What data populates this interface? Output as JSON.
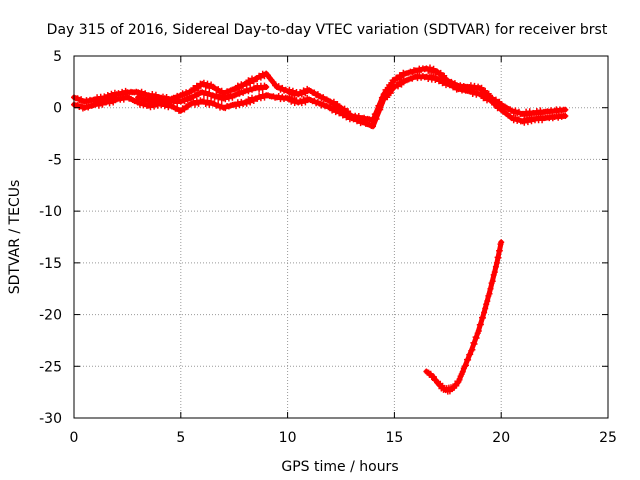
{
  "chart_data": {
    "type": "scatter",
    "title": "Day 315 of 2016, Sidereal Day-to-day VTEC variation (SDTVAR) for receiver brst",
    "xlabel": "GPS time / hours",
    "ylabel": "SDTVAR / TECUs",
    "xlim": [
      0,
      25
    ],
    "ylim": [
      -30,
      5
    ],
    "x_ticks": [
      0,
      5,
      10,
      15,
      20,
      25
    ],
    "x_tick_labels": [
      "0",
      "5",
      "10",
      "15",
      "20",
      "25"
    ],
    "y_ticks": [
      5,
      0,
      -5,
      -10,
      -15,
      -20,
      -25,
      -30
    ],
    "y_tick_labels": [
      "5",
      "0",
      "-5",
      "-10",
      "-15",
      "-20",
      "-25",
      "-30"
    ],
    "grid": true,
    "series_color": "#ff0000",
    "series": [
      {
        "name": "band-lower",
        "x": [
          0.0,
          0.5,
          1.0,
          1.5,
          2.0,
          2.5,
          3.0,
          3.5,
          4.0,
          4.5,
          5.0,
          5.5,
          6.0,
          6.5,
          7.0,
          7.5,
          8.0,
          8.5,
          9.0,
          9.5,
          10.0,
          10.5,
          11.0,
          11.5,
          12.0,
          12.5,
          13.0,
          13.5,
          14.0,
          14.5,
          15.0,
          15.5,
          16.0,
          16.5,
          17.0,
          17.5,
          18.0,
          18.5,
          19.0,
          19.5,
          20.0,
          20.5,
          21.0,
          21.5,
          22.0,
          22.5,
          23.0
        ],
        "y": [
          0.3,
          0.0,
          0.3,
          0.5,
          0.8,
          1.0,
          0.5,
          0.2,
          0.4,
          0.2,
          -0.3,
          0.4,
          0.6,
          0.4,
          0.0,
          0.3,
          0.5,
          0.9,
          1.2,
          1.0,
          0.9,
          0.5,
          0.8,
          0.4,
          0.0,
          -0.5,
          -1.0,
          -1.4,
          -1.8,
          0.8,
          2.0,
          2.6,
          3.0,
          3.0,
          2.8,
          2.3,
          1.8,
          1.6,
          1.3,
          0.7,
          -0.2,
          -1.0,
          -1.3,
          -1.1,
          -1.0,
          -0.9,
          -0.8
        ]
      },
      {
        "name": "band-upper",
        "x": [
          0.0,
          0.5,
          1.0,
          1.5,
          2.0,
          2.5,
          3.0,
          3.5,
          4.0,
          4.5,
          5.0,
          5.5,
          6.0,
          6.5,
          7.0,
          7.5,
          8.0,
          8.5,
          9.0,
          9.5,
          10.0,
          10.5,
          11.0,
          11.5,
          12.0,
          12.5,
          13.0,
          13.5,
          14.0,
          14.5,
          15.0,
          15.5,
          16.0,
          16.5,
          17.0,
          17.5,
          18.0,
          18.5,
          19.0,
          19.5,
          20.0,
          20.5,
          21.0,
          21.5,
          22.0,
          22.5,
          23.0
        ],
        "y": [
          1.0,
          0.6,
          0.8,
          1.0,
          1.3,
          1.5,
          1.5,
          1.2,
          1.0,
          0.8,
          1.2,
          1.6,
          2.3,
          2.0,
          1.4,
          1.8,
          2.3,
          2.8,
          3.3,
          2.0,
          1.6,
          1.3,
          1.7,
          1.1,
          0.6,
          0.0,
          -0.8,
          -1.0,
          -1.2,
          1.3,
          2.7,
          3.3,
          3.6,
          3.8,
          3.5,
          2.6,
          2.1,
          2.0,
          1.9,
          1.0,
          0.3,
          -0.3,
          -0.6,
          -0.5,
          -0.4,
          -0.3,
          -0.2
        ]
      },
      {
        "name": "band-mid",
        "x": [
          3.0,
          3.5,
          4.0,
          4.5,
          5.0,
          5.5,
          6.0,
          6.5,
          7.0,
          7.5,
          8.0,
          8.5,
          9.0
        ],
        "y": [
          1.0,
          0.7,
          0.8,
          0.7,
          0.6,
          1.0,
          1.5,
          1.2,
          0.9,
          1.2,
          1.6,
          1.9,
          2.0
        ]
      },
      {
        "name": "late-segment",
        "x": [
          16.5,
          16.8,
          17.1,
          17.4,
          17.7,
          18.0,
          18.3,
          18.6,
          18.9,
          19.2,
          19.5,
          19.8,
          20.0
        ],
        "y": [
          -25.5,
          -26.0,
          -26.8,
          -27.3,
          -27.2,
          -26.5,
          -25.0,
          -23.5,
          -21.8,
          -19.8,
          -17.5,
          -15.0,
          -13.0
        ]
      }
    ]
  }
}
